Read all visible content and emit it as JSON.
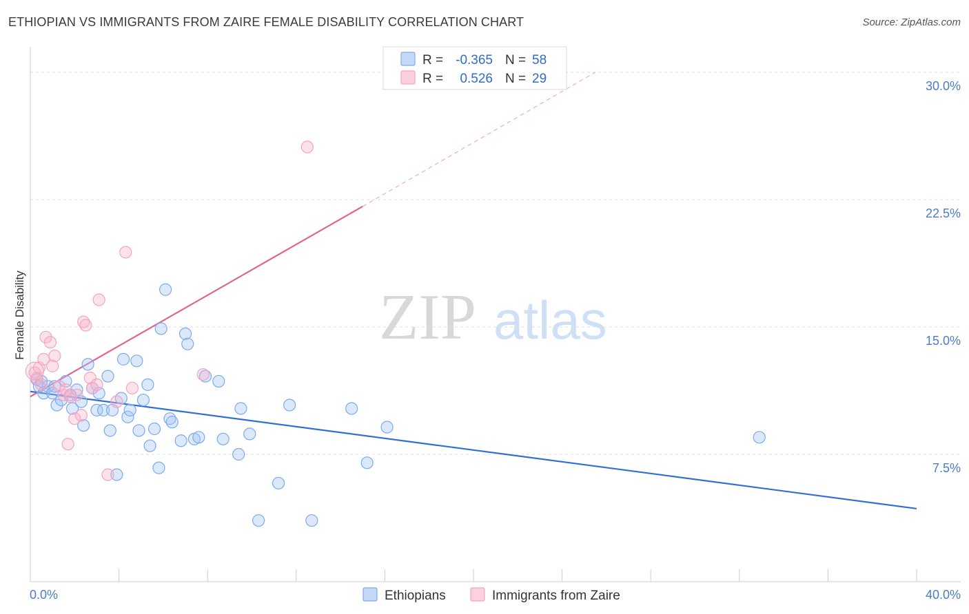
{
  "chart_data": {
    "type": "scatter",
    "title": "ETHIOPIAN VS IMMIGRANTS FROM ZAIRE FEMALE DISABILITY CORRELATION CHART",
    "source": "Source: ZipAtlas.com",
    "ylabel": "Female Disability",
    "xlabel": "",
    "xlim": [
      0,
      40
    ],
    "ylim": [
      0,
      31.5
    ],
    "x_tick_labels": [
      "0.0%",
      "40.0%"
    ],
    "y_ticks": [
      7.5,
      15.0,
      22.5,
      30.0
    ],
    "y_tick_labels": [
      "7.5%",
      "15.0%",
      "22.5%",
      "30.0%"
    ],
    "watermark": {
      "zip": "ZIP",
      "atlas": "atlas"
    },
    "legend": {
      "r_label": "R =",
      "n_label": "N =",
      "entries": [
        {
          "r": "-0.365",
          "n": "58"
        },
        {
          "r": "0.526",
          "n": "29"
        }
      ]
    },
    "series": [
      {
        "name": "Ethiopians",
        "color": "#7aaaf0",
        "line_color": "#2f6fd6",
        "trend": {
          "x0": 0,
          "y0": 11.2,
          "x1": 40,
          "y1": 4.3
        },
        "points": [
          [
            0.3,
            11.9
          ],
          [
            0.4,
            11.5
          ],
          [
            0.5,
            11.8
          ],
          [
            0.6,
            11.1
          ],
          [
            0.8,
            11.5
          ],
          [
            1.0,
            11.1
          ],
          [
            1.1,
            11.5
          ],
          [
            1.2,
            10.4
          ],
          [
            1.4,
            10.7
          ],
          [
            1.6,
            11.8
          ],
          [
            1.8,
            11.0
          ],
          [
            1.9,
            10.2
          ],
          [
            2.1,
            11.3
          ],
          [
            2.3,
            10.6
          ],
          [
            2.4,
            9.2
          ],
          [
            2.6,
            12.8
          ],
          [
            2.8,
            11.4
          ],
          [
            3.0,
            10.1
          ],
          [
            3.1,
            11.1
          ],
          [
            3.3,
            10.1
          ],
          [
            3.5,
            12.1
          ],
          [
            3.6,
            8.9
          ],
          [
            3.7,
            10.1
          ],
          [
            3.9,
            6.3
          ],
          [
            4.1,
            10.8
          ],
          [
            4.2,
            13.1
          ],
          [
            4.4,
            9.7
          ],
          [
            4.5,
            10.1
          ],
          [
            4.8,
            13.0
          ],
          [
            4.9,
            8.9
          ],
          [
            5.1,
            10.7
          ],
          [
            5.3,
            11.6
          ],
          [
            5.4,
            8.0
          ],
          [
            5.6,
            9.0
          ],
          [
            5.8,
            6.7
          ],
          [
            5.9,
            14.9
          ],
          [
            6.1,
            17.2
          ],
          [
            6.3,
            9.6
          ],
          [
            6.4,
            9.4
          ],
          [
            6.8,
            8.3
          ],
          [
            7.0,
            14.6
          ],
          [
            7.1,
            14.0
          ],
          [
            7.4,
            8.4
          ],
          [
            7.6,
            8.5
          ],
          [
            7.9,
            12.1
          ],
          [
            8.5,
            11.8
          ],
          [
            8.7,
            8.4
          ],
          [
            9.4,
            7.5
          ],
          [
            9.5,
            10.2
          ],
          [
            9.9,
            8.7
          ],
          [
            10.3,
            3.6
          ],
          [
            11.2,
            5.8
          ],
          [
            11.7,
            10.4
          ],
          [
            12.7,
            3.6
          ],
          [
            14.5,
            10.2
          ],
          [
            15.2,
            7.0
          ],
          [
            16.1,
            9.1
          ],
          [
            32.9,
            8.5
          ]
        ]
      },
      {
        "name": "Immigrants from Zaire",
        "color": "#f4a3bf",
        "line_color": "#e0658d",
        "trend": {
          "x0": 0,
          "y0": 10.9,
          "x1": 15.0,
          "y1": 22.1
        },
        "trend_ext": {
          "x0": 15.0,
          "y0": 22.1,
          "x1": 25.5,
          "y1": 30.0
        },
        "points": [
          [
            0.2,
            12.3
          ],
          [
            0.3,
            12.0
          ],
          [
            0.4,
            12.6
          ],
          [
            0.5,
            11.6
          ],
          [
            0.6,
            13.1
          ],
          [
            0.7,
            14.4
          ],
          [
            0.9,
            14.1
          ],
          [
            1.0,
            12.7
          ],
          [
            1.1,
            13.3
          ],
          [
            1.3,
            11.5
          ],
          [
            1.5,
            11.0
          ],
          [
            1.6,
            11.3
          ],
          [
            1.7,
            8.1
          ],
          [
            1.8,
            10.9
          ],
          [
            2.0,
            9.6
          ],
          [
            2.1,
            11.0
          ],
          [
            2.3,
            9.8
          ],
          [
            2.4,
            15.3
          ],
          [
            2.5,
            15.1
          ],
          [
            2.7,
            12.0
          ],
          [
            2.8,
            11.4
          ],
          [
            3.0,
            11.6
          ],
          [
            3.1,
            16.6
          ],
          [
            3.5,
            6.3
          ],
          [
            3.9,
            10.6
          ],
          [
            4.3,
            19.4
          ],
          [
            4.6,
            11.4
          ],
          [
            7.8,
            12.2
          ],
          [
            12.5,
            25.6
          ]
        ]
      }
    ]
  }
}
